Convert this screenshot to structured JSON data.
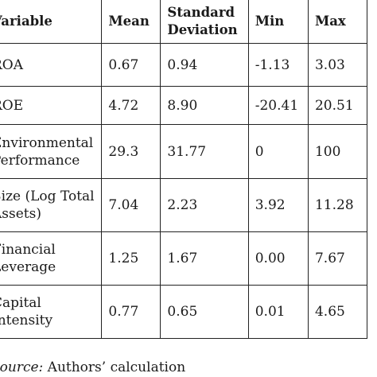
{
  "table": {
    "headers": {
      "variable": "Variable",
      "mean": "Mean",
      "sd_line1": "Standard",
      "sd_line2": "Deviation",
      "min": "Min",
      "max": "Max"
    },
    "rows": [
      {
        "name_line1": "ROA",
        "name_line2": "",
        "mean": "0.67",
        "sd": "0.94",
        "min": "-1.13",
        "max": "3.03"
      },
      {
        "name_line1": "ROE",
        "name_line2": "",
        "mean": "4.72",
        "sd": "8.90",
        "min": "-20.41",
        "max": "20.51"
      },
      {
        "name_line1": "Environmental",
        "name_line2": "Performance",
        "mean": "29.3",
        "sd": "31.77",
        "min": "0",
        "max": "100"
      },
      {
        "name_line1": "Size (Log Total",
        "name_line2": "Assets)",
        "mean": "7.04",
        "sd": "2.23",
        "min": "3.92",
        "max": "11.28"
      },
      {
        "name_line1": "Financial",
        "name_line2": "Leverage",
        "mean": "1.25",
        "sd": "1.67",
        "min": "0.00",
        "max": "7.67"
      },
      {
        "name_line1": "Capital",
        "name_line2": "Intensity",
        "mean": "0.77",
        "sd": "0.65",
        "min": "0.01",
        "max": "4.65"
      }
    ]
  },
  "source": {
    "label": "Source:",
    "text": " Authors’ calculation"
  }
}
